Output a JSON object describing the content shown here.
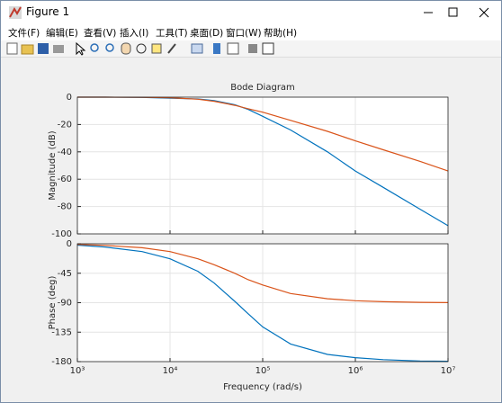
{
  "window": {
    "title": "Figure 1",
    "menu": [
      "文件(F)",
      "编辑(E)",
      "查看(V)",
      "插入(I)",
      "工具(T)",
      "桌面(D)",
      "窗口(W)",
      "帮助(H)"
    ]
  },
  "chart_data": [
    {
      "type": "line",
      "title": "Bode Diagram",
      "ylabel": "Magnitude (dB)",
      "xlog": true,
      "grid": true,
      "x": [
        1000,
        2000,
        5000,
        10000,
        20000,
        30000,
        50000,
        70000,
        100000,
        200000,
        500000,
        1000000,
        2000000,
        5000000,
        10000000
      ],
      "xlim": [
        1000,
        10000000
      ],
      "ylim": [
        -100,
        0
      ],
      "yticks": [
        0,
        -20,
        -40,
        -60,
        -80,
        -100
      ],
      "series": [
        {
          "color": "#0072bd",
          "values": [
            0,
            0,
            -0.2,
            -0.8,
            -1.3,
            -2.5,
            -5.5,
            -9,
            -14,
            -24,
            -40,
            -54,
            -66,
            -82,
            -94
          ]
        },
        {
          "color": "#d95319",
          "values": [
            0,
            0,
            -0.1,
            -0.4,
            -1.5,
            -3,
            -6,
            -8.5,
            -11,
            -17,
            -25,
            -32,
            -38.5,
            -47,
            -54
          ]
        }
      ]
    },
    {
      "type": "line",
      "ylabel": "Phase (deg)",
      "xlabel": "Frequency  (rad/s)",
      "xlog": true,
      "grid": true,
      "x": [
        1000,
        2000,
        5000,
        10000,
        20000,
        30000,
        50000,
        70000,
        100000,
        200000,
        500000,
        1000000,
        2000000,
        5000000,
        10000000
      ],
      "xlim": [
        1000,
        10000000
      ],
      "xticks": [
        {
          "value": 1000,
          "label": "10³"
        },
        {
          "value": 10000,
          "label": "10⁴"
        },
        {
          "value": 100000,
          "label": "10⁵"
        },
        {
          "value": 1000000,
          "label": "10⁶"
        },
        {
          "value": 10000000,
          "label": "10⁷"
        }
      ],
      "ylim": [
        -180,
        0
      ],
      "yticks": [
        0,
        -45,
        -90,
        -135,
        -180
      ],
      "series": [
        {
          "color": "#0072bd",
          "values": [
            -2,
            -5,
            -12,
            -23,
            -42,
            -60,
            -88,
            -107,
            -127,
            -153,
            -169,
            -174,
            -177,
            -179,
            -179.5
          ]
        },
        {
          "color": "#d95319",
          "values": [
            -1,
            -2.5,
            -6,
            -12,
            -23,
            -32,
            -45,
            -55,
            -63,
            -76,
            -84,
            -87,
            -88.5,
            -89.5,
            -89.8
          ]
        }
      ]
    }
  ]
}
